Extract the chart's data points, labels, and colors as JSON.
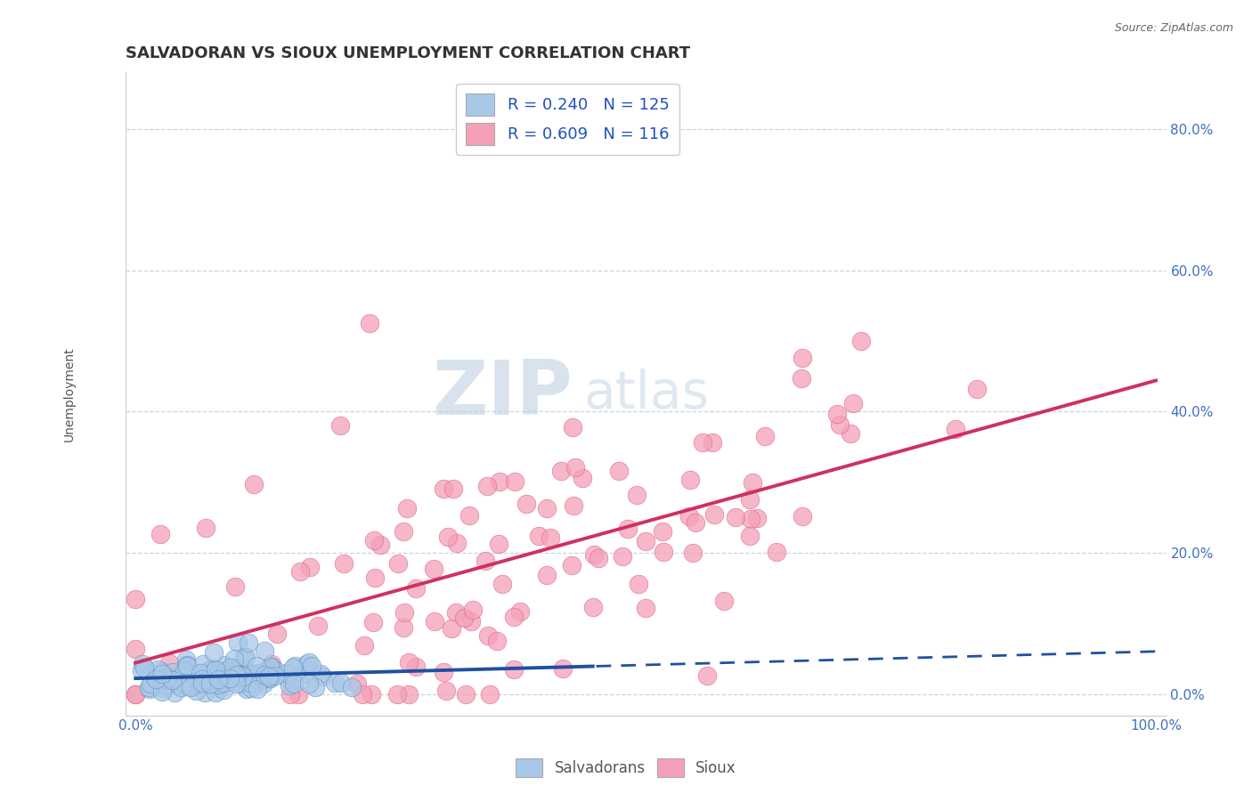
{
  "title": "SALVADORAN VS SIOUX UNEMPLOYMENT CORRELATION CHART",
  "source": "Source: ZipAtlas.com",
  "ylabel": "Unemployment",
  "xlim": [
    -1.0,
    101.0
  ],
  "ylim": [
    -3.0,
    88.0
  ],
  "xticks": [
    0.0,
    20.0,
    40.0,
    60.0,
    80.0,
    100.0
  ],
  "xticklabels": [
    "0.0%",
    "",
    "",
    "",
    "",
    "100.0%"
  ],
  "ytick_positions": [
    0.0,
    20.0,
    40.0,
    60.0,
    80.0
  ],
  "yticklabels": [
    "0.0%",
    "20.0%",
    "40.0%",
    "60.0%",
    "80.0%"
  ],
  "salvadoran_color": "#a8c8e8",
  "sioux_color": "#f4a0b8",
  "salvadoran_edge_color": "#6090c0",
  "sioux_edge_color": "#e06080",
  "salvadoran_line_color": "#2050a0",
  "sioux_line_color": "#d03060",
  "legend_R_salvadoran": "0.240",
  "legend_N_salvadoran": "125",
  "legend_R_sioux": "0.609",
  "legend_N_sioux": "116",
  "watermark_large": "ZIP",
  "watermark_small": "atlas",
  "background_color": "#ffffff",
  "grid_color": "#c8d4e8",
  "title_fontsize": 13,
  "axis_label_fontsize": 10,
  "tick_fontsize": 11,
  "tick_color": "#4070c0",
  "legend_text_color": "#2050c0",
  "source_color": "#666666"
}
